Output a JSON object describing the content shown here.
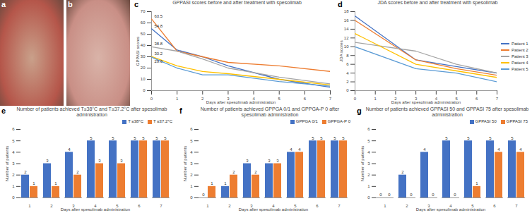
{
  "images": [
    {
      "label": "a"
    },
    {
      "label": "b"
    }
  ],
  "chart_data": [
    {
      "label": "c",
      "type": "line",
      "title": "GPPASI scores before and after treatment with spesolimab",
      "x_label": "Days after spesolimab administration",
      "y_label": "GPPASI scores",
      "x": [
        0,
        1,
        2,
        3,
        5,
        7
      ],
      "xlim": [
        0,
        7
      ],
      "xticks": [
        0,
        1,
        2,
        3,
        4,
        5,
        6,
        7
      ],
      "ylim": [
        0,
        70
      ],
      "yticks": [
        0,
        10,
        20,
        30,
        40,
        50,
        60,
        70
      ],
      "series": [
        {
          "color": "#4472c4",
          "values": [
            54.8,
            36,
            30,
            22,
            10,
            3
          ]
        },
        {
          "color": "#ed7d31",
          "values": [
            63.5,
            35,
            30,
            25,
            22,
            17
          ]
        },
        {
          "color": "#a5a5a5",
          "values": [
            38.8,
            35,
            28,
            20,
            12,
            6
          ]
        },
        {
          "color": "#ffc000",
          "values": [
            30.2,
            22,
            17,
            15,
            10,
            5
          ]
        },
        {
          "color": "#5b9bd5",
          "values": [
            29.6,
            20,
            14,
            14,
            8,
            4
          ]
        }
      ],
      "annotations": [
        {
          "x": 0,
          "y": 63.5,
          "text": "63.5"
        },
        {
          "x": 0,
          "y": 54.8,
          "text": "54.8"
        },
        {
          "x": 0,
          "y": 38.8,
          "text": "38.8"
        },
        {
          "x": 0,
          "y": 30.2,
          "text": "30.2"
        },
        {
          "x": 0,
          "y": 29.6,
          "text": "29.6"
        }
      ]
    },
    {
      "label": "d",
      "type": "line",
      "title": "JDA scores before and after treatment with spesolimab",
      "x_label": "Days after spesolimab administration",
      "y_label": "JDA scores",
      "x": [
        0,
        3,
        5,
        7
      ],
      "xlim": [
        0,
        7
      ],
      "xticks": [
        0,
        1,
        2,
        3,
        4,
        5,
        6,
        7
      ],
      "ylim": [
        0,
        18
      ],
      "yticks": [
        0,
        2,
        4,
        6,
        8,
        10,
        12,
        14,
        16,
        18
      ],
      "legend": "right",
      "series": [
        {
          "name": "Patient 1",
          "color": "#4472c4",
          "values": [
            17,
            7,
            5.5,
            4
          ]
        },
        {
          "name": "Patient 2",
          "color": "#ed7d31",
          "values": [
            16,
            7,
            5,
            3.5
          ]
        },
        {
          "name": "Patient 3",
          "color": "#a5a5a5",
          "values": [
            11,
            9,
            6,
            4
          ]
        },
        {
          "name": "Patient 4",
          "color": "#ffc000",
          "values": [
            13,
            6,
            4.5,
            3
          ]
        },
        {
          "name": "Patient 5",
          "color": "#5b9bd5",
          "values": [
            10,
            5,
            4,
            2
          ]
        }
      ]
    },
    {
      "label": "e",
      "type": "bar",
      "title": "Number of patients achieved T≤38°C and T≤37.2°C after  spesolimab administration",
      "x_label": "Days after spesolimab administration",
      "y_label": "Number of patients",
      "categories": [
        1,
        2,
        3,
        4,
        5,
        6,
        7
      ],
      "ylim": [
        0,
        6
      ],
      "yticks": [
        0,
        1,
        2,
        3,
        4,
        5,
        6
      ],
      "legend": "top-right",
      "data_labels": true,
      "series": [
        {
          "name": "T ≤38°C",
          "color": "#4472c4",
          "values": [
            2,
            3,
            4,
            5,
            5,
            5,
            5
          ]
        },
        {
          "name": "T ≤37.2°C",
          "color": "#ed7d31",
          "values": [
            1,
            1,
            2,
            3,
            3,
            5,
            5
          ]
        }
      ]
    },
    {
      "label": "f",
      "type": "bar",
      "title": "Number of patients achieved GPPGA 0/1 and GPPGA-P 0 after spesolimab administration",
      "x_label": "Days after spesolimab administration",
      "y_label": "Number of patients",
      "categories": [
        1,
        2,
        3,
        4,
        5,
        6,
        7
      ],
      "ylim": [
        0,
        6
      ],
      "yticks": [
        0,
        1,
        2,
        3,
        4,
        5,
        6
      ],
      "legend": "top-right",
      "data_labels": true,
      "series": [
        {
          "name": "GPPGA 0/1",
          "color": "#4472c4",
          "values": [
            0,
            1,
            3,
            3,
            4,
            5,
            5
          ]
        },
        {
          "name": "GPPGA-P 0",
          "color": "#ed7d31",
          "values": [
            1,
            2,
            2,
            3,
            4,
            5,
            5
          ]
        }
      ]
    },
    {
      "label": "g",
      "type": "bar",
      "title": "Number of patients achieved GPPASI 50 and GPPASI 75 after spesolimab administration",
      "x_label": "Days after spesolimab administration",
      "y_label": "Number of patients",
      "categories": [
        1,
        2,
        3,
        4,
        5,
        6,
        7
      ],
      "ylim": [
        0,
        6
      ],
      "yticks": [
        0,
        1,
        2,
        3,
        4,
        5,
        6
      ],
      "legend": "top-right",
      "data_labels": true,
      "series": [
        {
          "name": "GPPASI 50",
          "color": "#4472c4",
          "values": [
            0,
            2,
            4,
            5,
            5,
            5,
            5
          ]
        },
        {
          "name": "GPPASI 75",
          "color": "#ed7d31",
          "values": [
            0,
            0,
            0,
            0,
            1,
            4,
            4
          ]
        }
      ]
    }
  ]
}
